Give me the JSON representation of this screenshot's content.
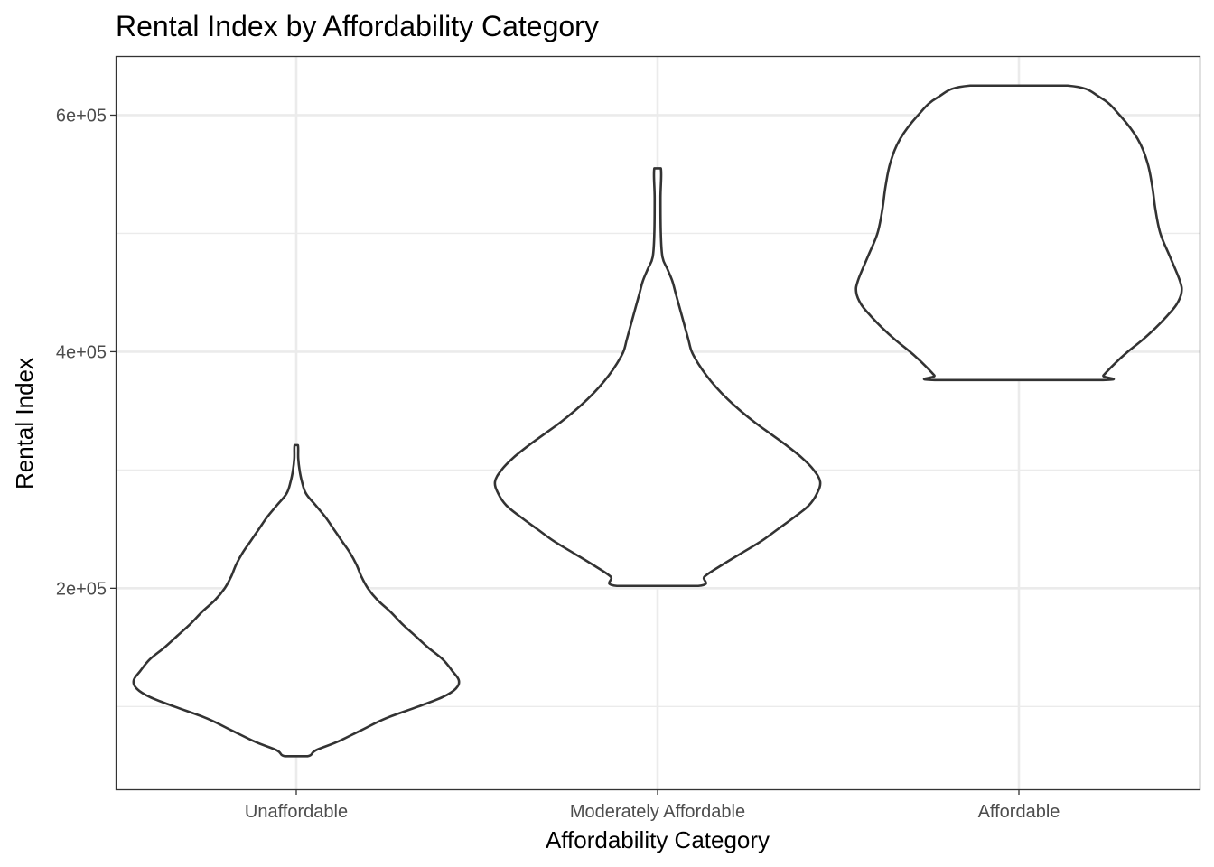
{
  "chart_data": {
    "type": "violin",
    "title": "Rental Index by Affordability Category",
    "xlabel": "Affordability Category",
    "ylabel": "Rental Index",
    "categories": [
      "Unaffordable",
      "Moderately Affordable",
      "Affordable"
    ],
    "ylim": [
      30000,
      650000
    ],
    "y_major_ticks": [
      200000,
      400000,
      600000
    ],
    "y_minor_ticks": [
      100000,
      300000,
      500000
    ],
    "y_tick_labels": [
      "2e+05",
      "4e+05",
      "6e+05"
    ],
    "grid": true,
    "theme": "bw",
    "line_color": "#333333",
    "fill_color": "#ffffff",
    "series": [
      {
        "category": "Unaffordable",
        "min": 58000,
        "max": 321000,
        "density_profile": [
          [
            321000,
            0.01
          ],
          [
            310000,
            0.012
          ],
          [
            300000,
            0.02
          ],
          [
            290000,
            0.035
          ],
          [
            280000,
            0.06
          ],
          [
            270000,
            0.12
          ],
          [
            260000,
            0.18
          ],
          [
            250000,
            0.23
          ],
          [
            240000,
            0.28
          ],
          [
            230000,
            0.33
          ],
          [
            220000,
            0.37
          ],
          [
            210000,
            0.4
          ],
          [
            200000,
            0.44
          ],
          [
            190000,
            0.5
          ],
          [
            180000,
            0.58
          ],
          [
            170000,
            0.65
          ],
          [
            160000,
            0.73
          ],
          [
            150000,
            0.81
          ],
          [
            140000,
            0.9
          ],
          [
            130000,
            0.96
          ],
          [
            122000,
            1.0
          ],
          [
            115000,
            0.98
          ],
          [
            108000,
            0.9
          ],
          [
            100000,
            0.75
          ],
          [
            90000,
            0.55
          ],
          [
            80000,
            0.4
          ],
          [
            70000,
            0.25
          ],
          [
            63000,
            0.12
          ],
          [
            58000,
            0.07
          ]
        ]
      },
      {
        "category": "Moderately Affordable",
        "min": 202000,
        "max": 555000,
        "density_profile": [
          [
            555000,
            0.02
          ],
          [
            530000,
            0.018
          ],
          [
            500000,
            0.02
          ],
          [
            480000,
            0.03
          ],
          [
            470000,
            0.06
          ],
          [
            460000,
            0.09
          ],
          [
            450000,
            0.11
          ],
          [
            440000,
            0.13
          ],
          [
            430000,
            0.15
          ],
          [
            420000,
            0.17
          ],
          [
            410000,
            0.19
          ],
          [
            400000,
            0.21
          ],
          [
            390000,
            0.25
          ],
          [
            380000,
            0.3
          ],
          [
            370000,
            0.36
          ],
          [
            360000,
            0.43
          ],
          [
            350000,
            0.51
          ],
          [
            340000,
            0.6
          ],
          [
            330000,
            0.7
          ],
          [
            320000,
            0.8
          ],
          [
            310000,
            0.89
          ],
          [
            300000,
            0.96
          ],
          [
            290000,
            1.0
          ],
          [
            280000,
            0.98
          ],
          [
            270000,
            0.93
          ],
          [
            260000,
            0.84
          ],
          [
            250000,
            0.74
          ],
          [
            240000,
            0.64
          ],
          [
            230000,
            0.52
          ],
          [
            220000,
            0.4
          ],
          [
            210000,
            0.29
          ],
          [
            202000,
            0.25
          ]
        ]
      },
      {
        "category": "Affordable",
        "min": 376000,
        "max": 625000,
        "density_profile": [
          [
            625000,
            0.3
          ],
          [
            615000,
            0.5
          ],
          [
            600000,
            0.62
          ],
          [
            580000,
            0.73
          ],
          [
            560000,
            0.79
          ],
          [
            540000,
            0.82
          ],
          [
            520000,
            0.84
          ],
          [
            500000,
            0.87
          ],
          [
            480000,
            0.93
          ],
          [
            460000,
            0.99
          ],
          [
            450000,
            1.0
          ],
          [
            440000,
            0.97
          ],
          [
            430000,
            0.91
          ],
          [
            420000,
            0.84
          ],
          [
            410000,
            0.76
          ],
          [
            400000,
            0.67
          ],
          [
            390000,
            0.59
          ],
          [
            380000,
            0.52
          ],
          [
            376000,
            0.5
          ]
        ]
      }
    ]
  }
}
